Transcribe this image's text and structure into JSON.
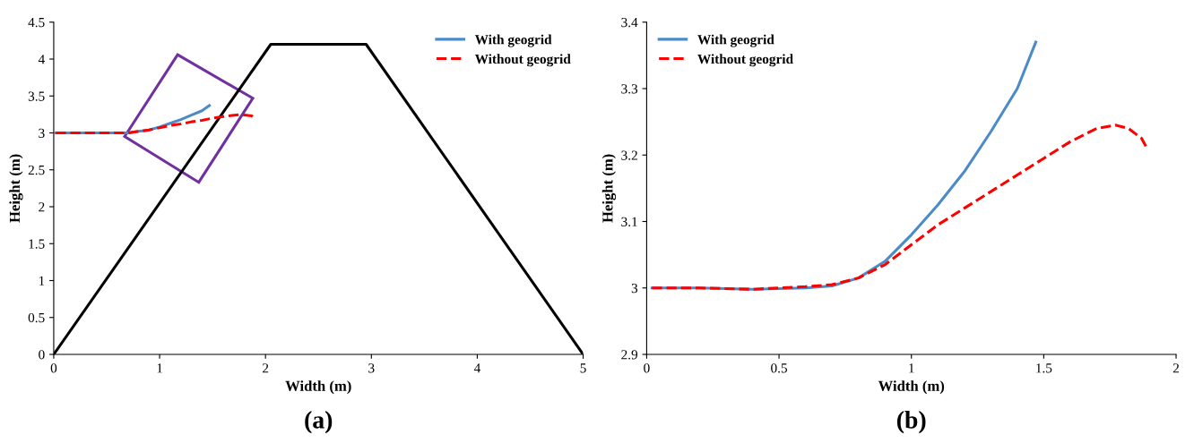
{
  "chart_data": [
    {
      "type": "line",
      "xlabel": "Width (m)",
      "ylabel": "Height (m)",
      "xlim": [
        0,
        5
      ],
      "ylim": [
        0,
        4.5
      ],
      "xticks": [
        0,
        1,
        2,
        3,
        4,
        5
      ],
      "yticks": [
        0,
        0.5,
        1,
        1.5,
        2,
        2.5,
        3,
        3.5,
        4,
        4.5
      ],
      "grid": false,
      "legend": "top right",
      "annotations": [
        "(a)"
      ],
      "series": [
        {
          "color": "#000000",
          "line_style": "solid",
          "x": [
            0,
            2.05,
            2.95,
            5
          ],
          "values": [
            0,
            4.2,
            4.2,
            0
          ]
        },
        {
          "name": "With geogrid",
          "color": "#4a8bc8",
          "line_style": "solid",
          "x": [
            0.02,
            0.2,
            0.4,
            0.6,
            0.7,
            0.8,
            0.9,
            1.0,
            1.1,
            1.2,
            1.3,
            1.4,
            1.47
          ],
          "values": [
            3.0,
            3.0,
            3.0,
            3.0,
            3.0,
            3.02,
            3.04,
            3.08,
            3.13,
            3.18,
            3.24,
            3.3,
            3.37
          ]
        },
        {
          "name": "Without geogrid",
          "color": "#ff0000",
          "line_style": "dashed",
          "x": [
            0.02,
            0.2,
            0.4,
            0.6,
            0.7,
            0.8,
            0.9,
            1.0,
            1.1,
            1.2,
            1.3,
            1.4,
            1.5,
            1.6,
            1.7,
            1.77,
            1.82,
            1.87,
            1.89
          ],
          "values": [
            3.0,
            3.0,
            3.0,
            3.0,
            3.0,
            3.02,
            3.04,
            3.07,
            3.1,
            3.12,
            3.15,
            3.17,
            3.2,
            3.22,
            3.24,
            3.25,
            3.24,
            3.23,
            3.21
          ]
        }
      ]
    },
    {
      "type": "line",
      "xlabel": "Width (m)",
      "ylabel": "Height (m)",
      "xlim": [
        0,
        2
      ],
      "ylim": [
        2.9,
        3.4
      ],
      "xticks": [
        0,
        0.5,
        1,
        1.5,
        2
      ],
      "yticks": [
        2.9,
        3,
        3.1,
        3.2,
        3.3,
        3.4
      ],
      "grid": false,
      "legend": "top left",
      "annotations": [
        "(b)"
      ],
      "series": [
        {
          "name": "With geogrid",
          "color": "#4a8bc8",
          "line_style": "solid",
          "x": [
            0.02,
            0.2,
            0.4,
            0.6,
            0.7,
            0.8,
            0.9,
            1.0,
            1.1,
            1.2,
            1.3,
            1.4,
            1.47
          ],
          "values": [
            3.0,
            3.0,
            2.998,
            3.0,
            3.003,
            3.015,
            3.04,
            3.08,
            3.125,
            3.175,
            3.235,
            3.3,
            3.37
          ]
        },
        {
          "name": "Without geogrid",
          "color": "#ff0000",
          "line_style": "dashed",
          "x": [
            0.02,
            0.2,
            0.4,
            0.6,
            0.7,
            0.8,
            0.9,
            1.0,
            1.1,
            1.2,
            1.3,
            1.4,
            1.5,
            1.6,
            1.7,
            1.77,
            1.82,
            1.87,
            1.89
          ],
          "values": [
            3.0,
            3.0,
            2.998,
            3.002,
            3.005,
            3.015,
            3.035,
            3.065,
            3.095,
            3.12,
            3.145,
            3.17,
            3.195,
            3.22,
            3.24,
            3.245,
            3.24,
            3.225,
            3.21
          ]
        }
      ]
    }
  ]
}
